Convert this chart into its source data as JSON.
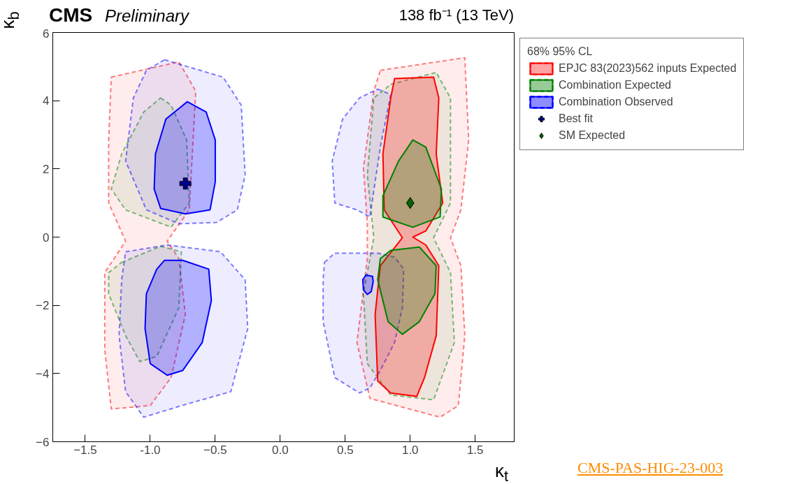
{
  "chart_data": {
    "type": "area",
    "title": "CMS Preliminary",
    "subtitle": "138 fb⁻¹ (13 TeV)",
    "xlabel": "κ$_{t}$",
    "ylabel": "κ$_{b}$",
    "legend_title": "68% 95% CL",
    "annotations": [
      "CMS-PAS-HIG-23-003"
    ],
    "xlim": [
      -1.75,
      1.8
    ],
    "ylim": [
      -6,
      6
    ],
    "xticks": [
      -1.5,
      {
        "value": -1.0,
        "label": "-1.0"
      },
      -0.5,
      {
        "value": 0.0,
        "label": "0.0"
      },
      0.5,
      {
        "value": 1.0,
        "label": "1.0"
      },
      1.5
    ],
    "yticks": [
      -6,
      -4,
      -2,
      0,
      2,
      4,
      6
    ],
    "grid": false,
    "legend": "right",
    "series": [
      {
        "color": "#ff0000",
        "line_style": "dashed",
        "x": [
          -1.3,
          -0.78,
          -0.65,
          -0.7,
          -0.87,
          -0.78,
          -0.73,
          -0.84,
          -1.0,
          -1.3,
          -1.35,
          -1.35,
          -1.19,
          -1.32,
          -1.32
        ],
        "values": [
          4.69,
          5.14,
          4.28,
          0.8,
          -0.12,
          -0.63,
          -2.27,
          -4.12,
          -4.94,
          -5.04,
          -3.3,
          -1.04,
          -0.12,
          1.0,
          2.85
        ]
      },
      {
        "color": "#ff0000",
        "line_style": "dashed",
        "x": [
          0.77,
          1.42,
          1.45,
          1.39,
          1.31,
          1.39,
          1.42,
          1.37,
          1.23,
          0.69,
          0.59,
          0.67,
          0.67,
          0.64,
          0.72
        ],
        "values": [
          4.89,
          5.26,
          2.85,
          0.8,
          -0.02,
          -0.84,
          -2.89,
          -4.94,
          -5.28,
          -4.73,
          -3.09,
          -0.63,
          0.39,
          2.03,
          4.28
        ]
      },
      {
        "color": "#008000",
        "line_style": "dashed",
        "x": [
          -0.92,
          -0.84,
          -0.72,
          -0.7,
          -0.84,
          -1.19,
          -1.3,
          -1.22,
          -1.05
        ],
        "values": [
          4.08,
          3.87,
          2.85,
          1.0,
          0.29,
          0.8,
          1.41,
          2.44,
          3.67
        ]
      },
      {
        "color": "#008000",
        "line_style": "dashed",
        "x": [
          -1.22,
          -0.92,
          -0.76,
          -0.78,
          -0.95,
          -1.08,
          -1.19,
          -1.32,
          -1.32
        ],
        "values": [
          -0.74,
          -0.27,
          -0.43,
          -2.07,
          -3.5,
          -3.65,
          -2.89,
          -1.66,
          -1.04
        ]
      },
      {
        "color": "#008000",
        "line_style": "dashed",
        "x": [
          0.85,
          1.2,
          1.31,
          1.31,
          1.18,
          1.31,
          1.34,
          1.18,
          0.85,
          0.67,
          0.64,
          0.72,
          0.67,
          0.72
        ],
        "values": [
          4.48,
          4.83,
          4.08,
          1.0,
          -0.02,
          -1.04,
          -3.09,
          -4.77,
          -4.63,
          -3.71,
          -1.66,
          -0.02,
          1.82,
          4.08
        ]
      },
      {
        "color": "#0000ff",
        "line_style": "dashed",
        "x": [
          -0.89,
          -0.44,
          -0.3,
          -0.27,
          -0.33,
          -0.49,
          -0.78,
          -1.03,
          -1.19,
          -1.13,
          -1.03
        ],
        "values": [
          5.2,
          4.69,
          3.87,
          1.82,
          0.8,
          0.43,
          0.39,
          0.8,
          2.23,
          4.08,
          4.89
        ]
      },
      {
        "color": "#0000ff",
        "line_style": "dashed",
        "x": [
          -1.19,
          -0.87,
          -0.46,
          -0.27,
          -0.25,
          -0.38,
          -0.76,
          -1.05,
          -1.19,
          -1.24,
          -1.22
        ],
        "values": [
          -0.43,
          -0.23,
          -0.43,
          -1.25,
          -2.68,
          -4.53,
          -4.94,
          -5.28,
          -4.53,
          -2.89,
          -1.25
        ]
      },
      {
        "color": "#0000ff",
        "line_style": "dashed",
        "x": [
          0.75,
          0.85,
          0.77,
          0.69,
          0.59,
          0.42,
          0.4,
          0.48,
          0.61
        ],
        "values": [
          4.34,
          4.18,
          2.64,
          0.59,
          0.8,
          1.0,
          2.23,
          3.46,
          4.08
        ]
      },
      {
        "color": "#0000ff",
        "line_style": "dashed",
        "x": [
          0.34,
          0.42,
          0.59,
          0.75,
          0.88,
          0.95,
          0.94,
          0.88,
          0.77,
          0.69,
          0.61,
          0.42,
          0.33,
          0.33
        ],
        "values": [
          -0.74,
          -0.47,
          -0.47,
          -0.47,
          -0.59,
          -0.94,
          -2.07,
          -3.09,
          -3.91,
          -4.42,
          -4.57,
          -4.12,
          -2.48,
          -1.25
        ]
      },
      {
        "name": "EPJC 83(2023)562 inputs Expected",
        "color": "#ff0000",
        "line_style": "solid",
        "x": [
          0.88,
          1.18,
          1.22,
          1.2,
          1.25,
          1.12,
          1.02,
          1.12,
          1.22,
          1.2,
          1.11,
          1.05,
          0.85,
          0.75,
          0.73,
          0.77,
          0.94,
          0.8,
          0.79,
          0.85
        ],
        "values": [
          4.65,
          4.69,
          4.08,
          2.44,
          1.0,
          0.18,
          0,
          -0.23,
          -0.84,
          -2.89,
          -4.12,
          -4.67,
          -4.57,
          -4.22,
          -2.27,
          -0.84,
          -0.02,
          0.8,
          2.44,
          4.08
        ]
      },
      {
        "name": "Combination Expected",
        "color": "#008000",
        "line_style": "solid",
        "x": [
          1.02,
          1.12,
          1.24,
          1.23,
          1.02,
          0.79,
          0.79,
          0.91
        ],
        "values": [
          2.85,
          2.64,
          1.41,
          0.59,
          0.29,
          0.59,
          1.21,
          2.23
        ]
      },
      {
        "color": "#008000",
        "line_style": "solid",
        "x": [
          0.85,
          1.07,
          1.2,
          1.19,
          1.07,
          0.94,
          0.83,
          0.75,
          0.77
        ],
        "values": [
          -0.39,
          -0.29,
          -0.84,
          -1.66,
          -2.48,
          -2.85,
          -2.48,
          -1.25,
          -0.63
        ]
      },
      {
        "name": "Combination Observed",
        "color": "#0000ff",
        "line_style": "solid",
        "x": [
          -0.715,
          -0.57,
          -0.5,
          -0.5,
          -0.54,
          -0.73,
          -0.92,
          -0.97,
          -0.96,
          -0.88
        ],
        "values": [
          3.97,
          3.67,
          2.85,
          1.62,
          0.8,
          0.68,
          0.84,
          1.41,
          2.44,
          3.46
        ]
      },
      {
        "color": "#0000ff",
        "line_style": "solid",
        "x": [
          -0.89,
          -0.75,
          -0.55,
          -0.53,
          -0.6,
          -0.75,
          -0.87,
          -1.0,
          -1.04,
          -1.03,
          -0.95
        ],
        "values": [
          -0.68,
          -0.68,
          -0.94,
          -1.86,
          -3.09,
          -3.91,
          -4.05,
          -3.71,
          -2.68,
          -1.66,
          -0.94
        ]
      },
      {
        "color": "#0000ff",
        "line_style": "solid",
        "x": [
          0.66,
          0.71,
          0.715,
          0.7,
          0.67,
          0.64,
          0.635
        ],
        "values": [
          -1.11,
          -1.15,
          -1.3,
          -1.6,
          -1.68,
          -1.55,
          -1.25
        ]
      },
      {
        "name": "Best fit",
        "type": "scatter",
        "marker": "cross",
        "color": "#00008b",
        "x": [
          -0.73
        ],
        "values": [
          1.57
        ]
      },
      {
        "name": "SM Expected",
        "type": "scatter",
        "marker": "diamond",
        "color": "#006400",
        "x": [
          1.0
        ],
        "values": [
          1.0
        ]
      }
    ]
  }
}
